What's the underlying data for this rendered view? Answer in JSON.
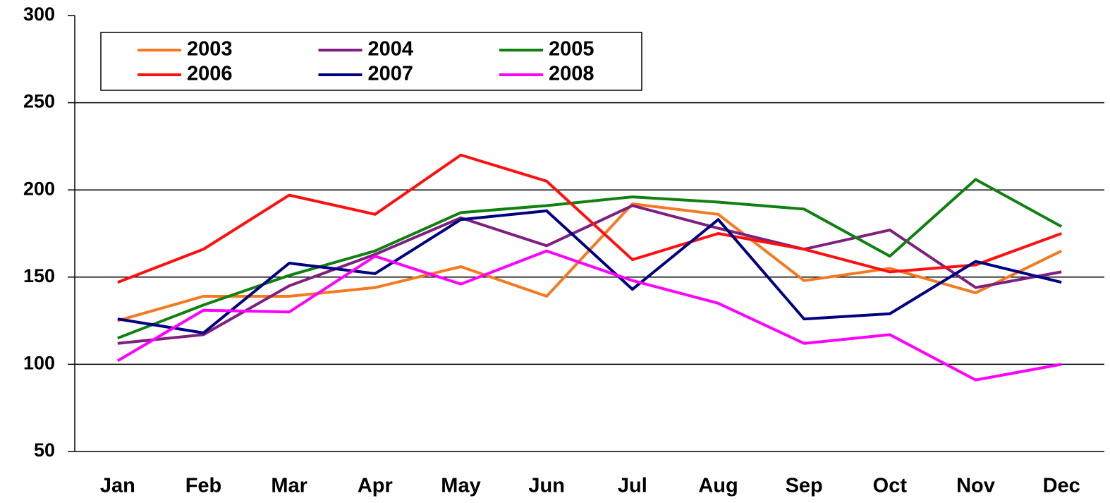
{
  "chart_data": {
    "type": "line",
    "categories": [
      "Jan",
      "Feb",
      "Mar",
      "Apr",
      "May",
      "Jun",
      "Jul",
      "Aug",
      "Sep",
      "Oct",
      "Nov",
      "Dec"
    ],
    "series": [
      {
        "name": "2003",
        "color": "#f47920",
        "values": [
          125,
          139,
          139,
          144,
          156,
          139,
          192,
          186,
          148,
          155,
          141,
          165
        ]
      },
      {
        "name": "2004",
        "color": "#7f1f7f",
        "values": [
          112,
          117,
          145,
          163,
          184,
          168,
          191,
          178,
          166,
          177,
          144,
          153
        ]
      },
      {
        "name": "2005",
        "color": "#108010",
        "values": [
          115,
          134,
          151,
          165,
          187,
          191,
          196,
          193,
          189,
          162,
          206,
          179
        ]
      },
      {
        "name": "2006",
        "color": "#ff1010",
        "values": [
          147,
          166,
          197,
          186,
          220,
          205,
          160,
          175,
          166,
          153,
          157,
          175
        ]
      },
      {
        "name": "2007",
        "color": "#000080",
        "values": [
          126,
          118,
          158,
          152,
          183,
          188,
          143,
          183,
          126,
          129,
          159,
          147
        ]
      },
      {
        "name": "2008",
        "color": "#ff00ff",
        "values": [
          102,
          131,
          130,
          162,
          146,
          165,
          148,
          135,
          112,
          117,
          91,
          100
        ]
      }
    ],
    "ylim": [
      50,
      300
    ],
    "yticks": [
      50,
      100,
      150,
      200,
      250,
      300
    ],
    "grid": true,
    "legend": "top-left"
  }
}
